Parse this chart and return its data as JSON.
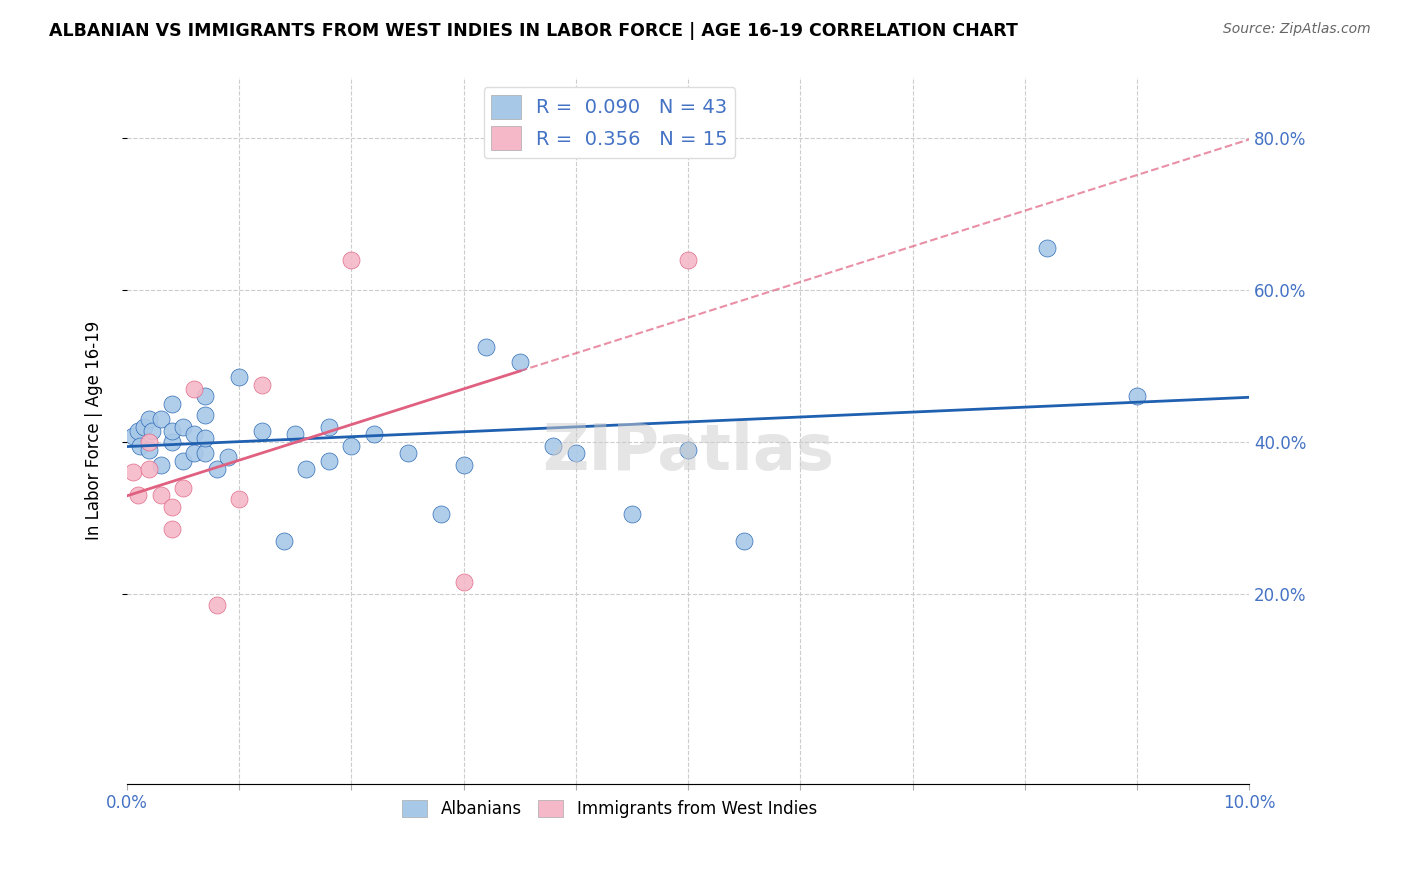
{
  "title": "ALBANIAN VS IMMIGRANTS FROM WEST INDIES IN LABOR FORCE | AGE 16-19 CORRELATION CHART",
  "source": "Source: ZipAtlas.com",
  "ylabel": "In Labor Force | Age 16-19",
  "xlim": [
    0.0,
    0.1
  ],
  "ylim": [
    -0.05,
    0.88
  ],
  "blue_color": "#a8c8e8",
  "pink_color": "#f4b8c8",
  "blue_line_color": "#2060b0",
  "pink_line_color": "#e06080",
  "blue_r": 0.09,
  "blue_n": 43,
  "pink_r": 0.356,
  "pink_n": 15,
  "albanians_x": [
    0.0005,
    0.001,
    0.0012,
    0.0015,
    0.002,
    0.002,
    0.0022,
    0.003,
    0.003,
    0.004,
    0.004,
    0.004,
    0.005,
    0.005,
    0.006,
    0.006,
    0.007,
    0.007,
    0.007,
    0.007,
    0.008,
    0.009,
    0.01,
    0.012,
    0.014,
    0.015,
    0.016,
    0.018,
    0.018,
    0.02,
    0.022,
    0.025,
    0.028,
    0.03,
    0.032,
    0.035,
    0.038,
    0.04,
    0.045,
    0.05,
    0.055,
    0.082,
    0.09
  ],
  "albanians_y": [
    0.408,
    0.415,
    0.395,
    0.42,
    0.39,
    0.43,
    0.415,
    0.37,
    0.43,
    0.4,
    0.415,
    0.45,
    0.375,
    0.42,
    0.385,
    0.41,
    0.435,
    0.385,
    0.405,
    0.46,
    0.365,
    0.38,
    0.485,
    0.415,
    0.27,
    0.41,
    0.365,
    0.375,
    0.42,
    0.395,
    0.41,
    0.385,
    0.305,
    0.37,
    0.525,
    0.505,
    0.395,
    0.385,
    0.305,
    0.39,
    0.27,
    0.655,
    0.46
  ],
  "westindies_x": [
    0.0005,
    0.001,
    0.002,
    0.002,
    0.003,
    0.004,
    0.004,
    0.005,
    0.006,
    0.008,
    0.01,
    0.012,
    0.02,
    0.03,
    0.05
  ],
  "westindies_y": [
    0.36,
    0.33,
    0.365,
    0.4,
    0.33,
    0.285,
    0.315,
    0.34,
    0.47,
    0.185,
    0.325,
    0.475,
    0.64,
    0.215,
    0.64
  ],
  "watermark": "ZIPatlas"
}
